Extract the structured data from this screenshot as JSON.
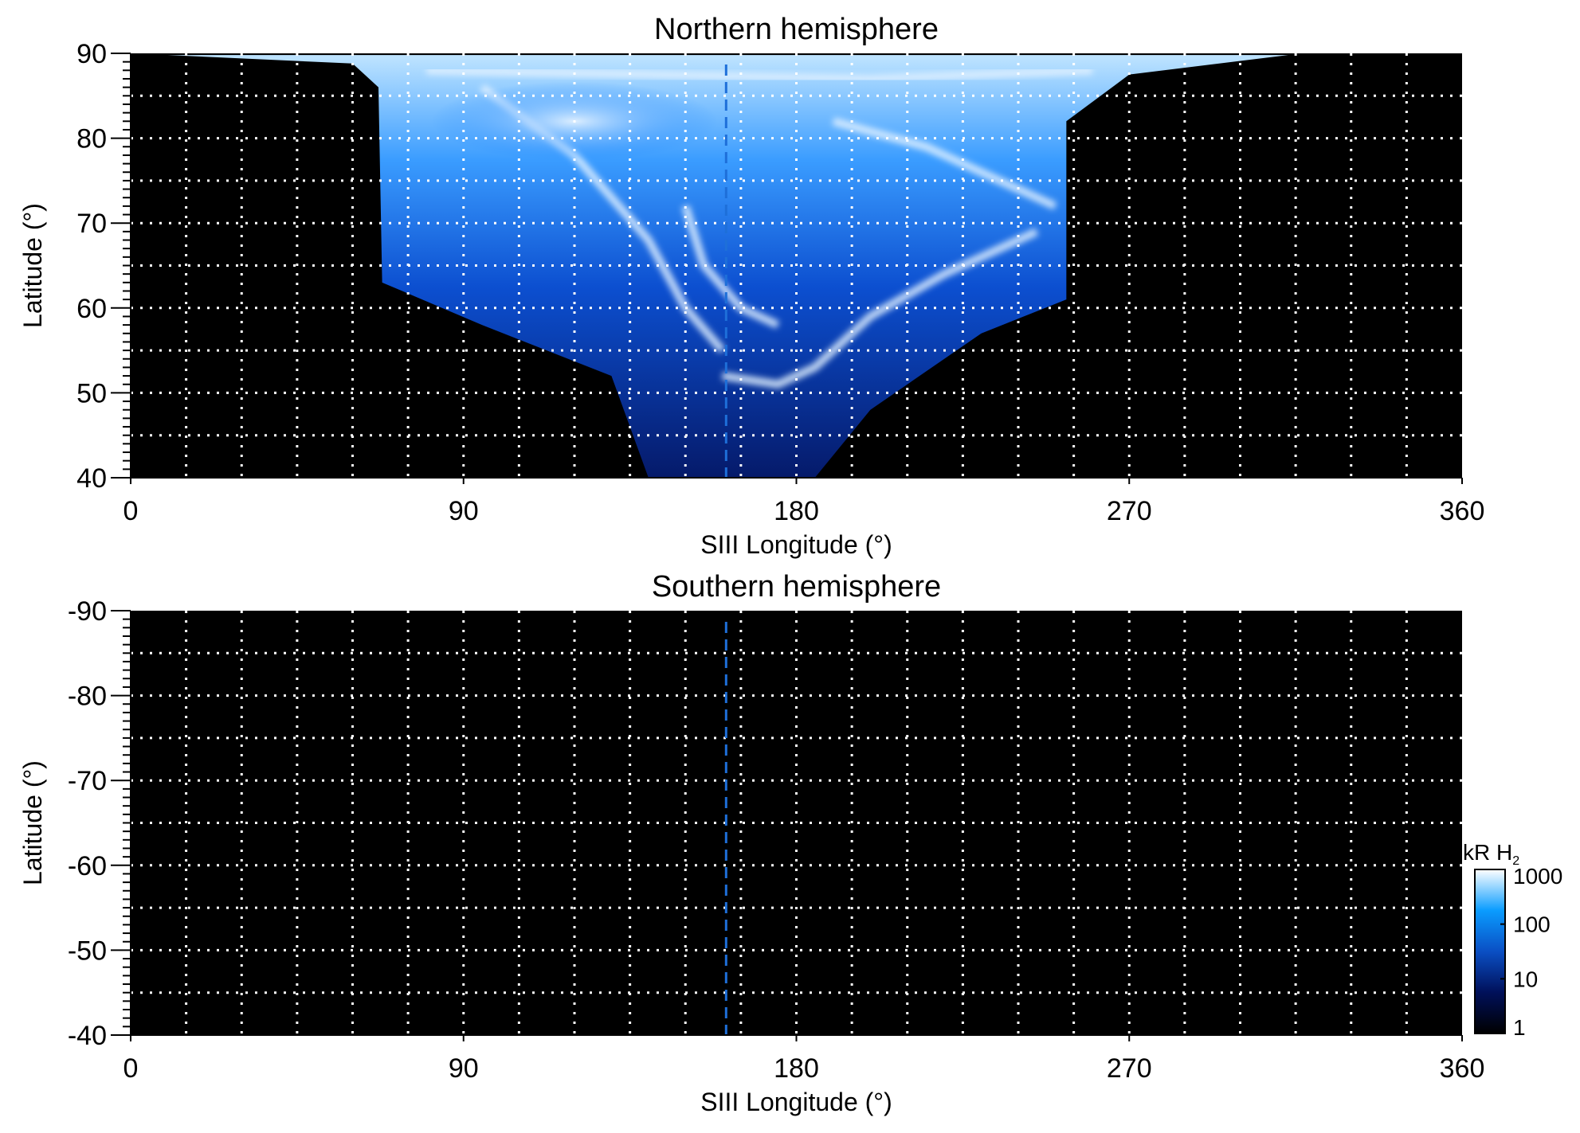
{
  "chart_data": [
    {
      "type": "heatmap",
      "title": "Northern hemisphere",
      "xlabel": "SIII Longitude (°)",
      "ylabel": "Latitude (°)",
      "xlim": [
        0,
        360
      ],
      "ylim": [
        40,
        90
      ],
      "xticks": [
        "0",
        "90",
        "180",
        "270",
        "360"
      ],
      "yticks": [
        "40",
        "50",
        "60",
        "70",
        "80",
        "90"
      ],
      "grid": {
        "on": true,
        "x_step": 15,
        "y_step": 5,
        "style": "dotted",
        "color": "#ffffff"
      },
      "reference_line": {
        "longitude": 161,
        "style": "dashed",
        "color": "#1e6fd9"
      },
      "background": "#000000",
      "content": "auroral emission between ~68° and ~253° longitude, reaching down to ~40° latitude near 140-180° longitude"
    },
    {
      "type": "heatmap",
      "title": "Southern hemisphere",
      "xlabel": "SIII Longitude (°)",
      "ylabel": "Latitude (°)",
      "xlim": [
        0,
        360
      ],
      "ylim": [
        -90,
        -40
      ],
      "xticks": [
        "0",
        "90",
        "180",
        "270",
        "360"
      ],
      "yticks": [
        "-40",
        "-50",
        "-60",
        "-70",
        "-80",
        "-90"
      ],
      "grid": {
        "on": true,
        "x_step": 15,
        "y_step": 5,
        "style": "dotted",
        "color": "#ffffff"
      },
      "reference_line": {
        "longitude": 161,
        "style": "dashed",
        "color": "#1e6fd9"
      },
      "background": "#000000",
      "colorbar": {
        "label": "kR H",
        "label_subscript": "2",
        "scale": "log",
        "range": [
          1,
          1000
        ],
        "ticks": [
          "1",
          "10",
          "100",
          "1000"
        ],
        "colors": [
          "#000000",
          "#00105a",
          "#0a4fc4",
          "#0a9cff",
          "#ffffff"
        ]
      }
    }
  ]
}
